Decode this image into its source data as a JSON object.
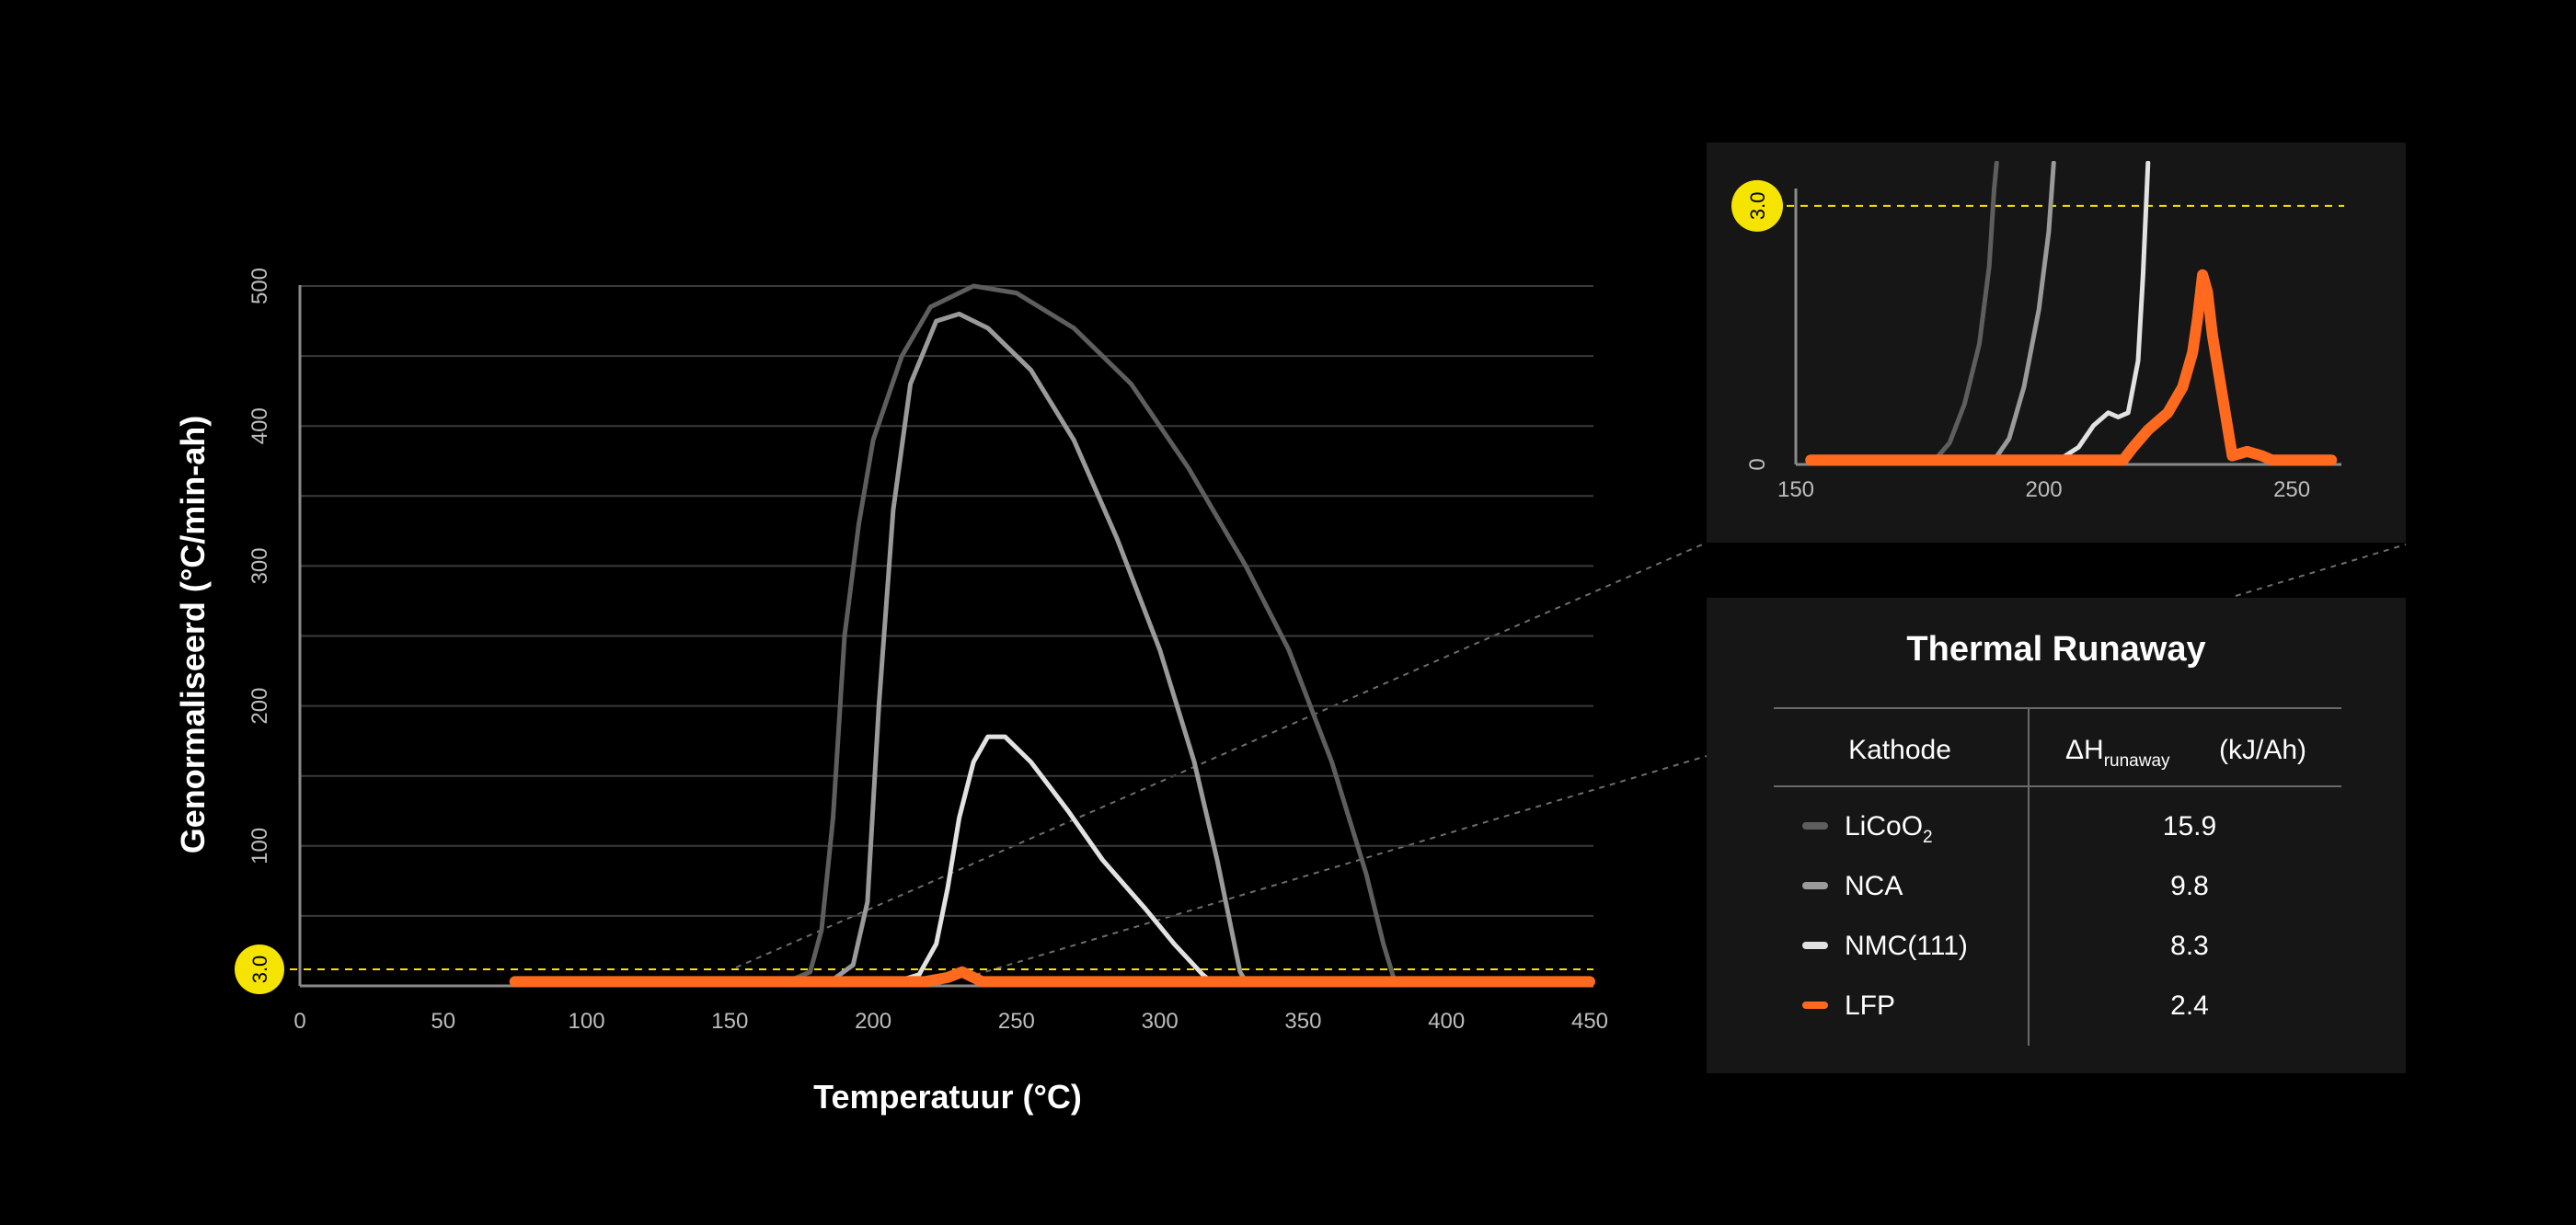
{
  "chart_data": [
    {
      "type": "line",
      "xlabel": "Temperatuur (°C)",
      "ylabel": "Genormaliseerd (°C/min-ah)",
      "xlim": [
        0,
        450
      ],
      "ylim": [
        0,
        500
      ],
      "x_ticks": [
        "0",
        "50",
        "100",
        "150",
        "200",
        "250",
        "300",
        "350",
        "400",
        "450"
      ],
      "y_ticks": [
        "100",
        "200",
        "300",
        "400",
        "500"
      ],
      "grid": true,
      "reference_line": {
        "y": 3.0,
        "label": "3.0",
        "color": "#f5e400"
      },
      "series": [
        {
          "name": "LiCoO₂",
          "color": "#5e5e5e",
          "points": [
            [
              75,
              3
            ],
            [
              170,
              3
            ],
            [
              178,
              10
            ],
            [
              182,
              40
            ],
            [
              186,
              120
            ],
            [
              190,
              250
            ],
            [
              195,
              330
            ],
            [
              200,
              390
            ],
            [
              210,
              450
            ],
            [
              220,
              485
            ],
            [
              235,
              500
            ],
            [
              250,
              495
            ],
            [
              270,
              470
            ],
            [
              290,
              430
            ],
            [
              310,
              370
            ],
            [
              330,
              300
            ],
            [
              345,
              240
            ],
            [
              360,
              160
            ],
            [
              372,
              80
            ],
            [
              378,
              30
            ],
            [
              382,
              3
            ],
            [
              450,
              3
            ]
          ]
        },
        {
          "name": "NCA",
          "color": "#9a9a9a",
          "points": [
            [
              75,
              3
            ],
            [
              185,
              3
            ],
            [
              193,
              15
            ],
            [
              198,
              60
            ],
            [
              202,
              200
            ],
            [
              207,
              340
            ],
            [
              213,
              430
            ],
            [
              222,
              475
            ],
            [
              230,
              480
            ],
            [
              240,
              470
            ],
            [
              255,
              440
            ],
            [
              270,
              390
            ],
            [
              285,
              320
            ],
            [
              300,
              240
            ],
            [
              312,
              160
            ],
            [
              320,
              90
            ],
            [
              325,
              40
            ],
            [
              328,
              10
            ],
            [
              330,
              3
            ],
            [
              450,
              3
            ]
          ]
        },
        {
          "name": "NMC(111)",
          "color": "#e2e2e2",
          "points": [
            [
              75,
              3
            ],
            [
              208,
              3
            ],
            [
              216,
              8
            ],
            [
              222,
              30
            ],
            [
              226,
              70
            ],
            [
              230,
              120
            ],
            [
              235,
              160
            ],
            [
              240,
              178
            ],
            [
              246,
              178
            ],
            [
              255,
              160
            ],
            [
              268,
              125
            ],
            [
              280,
              90
            ],
            [
              295,
              55
            ],
            [
              305,
              30
            ],
            [
              315,
              8
            ],
            [
              318,
              3
            ],
            [
              450,
              3
            ]
          ]
        },
        {
          "name": "LFP",
          "color": "#ff6a1e",
          "points": [
            [
              75,
              3
            ],
            [
              218,
              3
            ],
            [
              226,
              6
            ],
            [
              231,
              10
            ],
            [
              234,
              7
            ],
            [
              238,
              3
            ],
            [
              450,
              3
            ]
          ]
        }
      ]
    },
    {
      "type": "line",
      "title": "",
      "xlim": [
        150,
        260
      ],
      "ylim": [
        0,
        3.5
      ],
      "x_ticks": [
        "150",
        "200",
        "250"
      ],
      "y_ticks": [
        "0"
      ],
      "reference_line": {
        "y": 3.0,
        "label": "3.0",
        "color": "#f5e400"
      },
      "series": [
        {
          "name": "LiCoO₂",
          "color": "#5e5e5e",
          "points": [
            [
              153,
              0.05
            ],
            [
              178,
              0.05
            ],
            [
              181,
              0.25
            ],
            [
              184,
              0.7
            ],
            [
              187,
              1.4
            ],
            [
              189,
              2.3
            ],
            [
              190,
              3.2
            ],
            [
              190.5,
              3.5
            ]
          ]
        },
        {
          "name": "NCA",
          "color": "#9a9a9a",
          "points": [
            [
              153,
              0.05
            ],
            [
              190,
              0.05
            ],
            [
              193,
              0.3
            ],
            [
              196,
              0.9
            ],
            [
              199,
              1.8
            ],
            [
              201,
              2.7
            ],
            [
              202,
              3.5
            ]
          ]
        },
        {
          "name": "NMC(111)",
          "color": "#e2e2e2",
          "points": [
            [
              153,
              0.05
            ],
            [
              203,
              0.05
            ],
            [
              207,
              0.2
            ],
            [
              210,
              0.45
            ],
            [
              213,
              0.6
            ],
            [
              215,
              0.55
            ],
            [
              217,
              0.6
            ],
            [
              219,
              1.2
            ],
            [
              220,
              2.2
            ],
            [
              221,
              3.5
            ]
          ]
        },
        {
          "name": "LFP",
          "color": "#ff6a1e",
          "points": [
            [
              153,
              0.05
            ],
            [
              216,
              0.05
            ],
            [
              218,
              0.2
            ],
            [
              221,
              0.4
            ],
            [
              225,
              0.6
            ],
            [
              228,
              0.9
            ],
            [
              230,
              1.3
            ],
            [
              231,
              1.7
            ],
            [
              232,
              2.2
            ],
            [
              233,
              2.0
            ],
            [
              234,
              1.5
            ],
            [
              236,
              0.8
            ],
            [
              238,
              0.1
            ],
            [
              241,
              0.15
            ],
            [
              244,
              0.1
            ],
            [
              246,
              0.05
            ],
            [
              258,
              0.05
            ]
          ]
        }
      ]
    }
  ],
  "table": {
    "title": "Thermal Runaway",
    "col_kathode": "Kathode",
    "col_dh_main": "ΔH",
    "col_dh_sub": "runaway",
    "col_dh_unit": "(kJ/Ah)",
    "rows": [
      {
        "name_main": "LiCoO",
        "name_sub": "2",
        "value": "15.9",
        "color": "#5e5e5e"
      },
      {
        "name_main": "NCA",
        "name_sub": "",
        "value": "9.8",
        "color": "#9a9a9a"
      },
      {
        "name_main": "NMC(111)",
        "name_sub": "",
        "value": "8.3",
        "color": "#e2e2e2"
      },
      {
        "name_main": "LFP",
        "name_sub": "",
        "value": "2.4",
        "color": "#ff6a1e"
      }
    ]
  },
  "colors": {
    "background": "#000000",
    "panel": "#161616",
    "grid": "#3a3a3a",
    "axis": "#8a8a8a",
    "reference": "#f5e400"
  }
}
